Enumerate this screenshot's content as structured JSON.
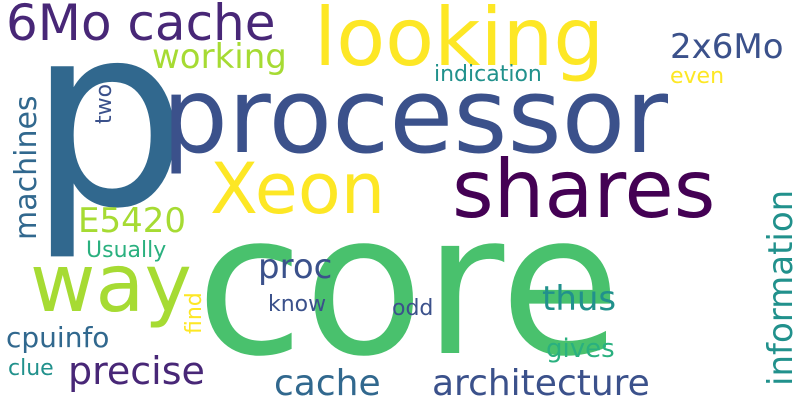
{
  "words": {
    "p": {
      "text": "p",
      "color": "#31688e"
    },
    "core": {
      "text": "core",
      "color": "#49c16d"
    },
    "processor": {
      "text": "processor",
      "color": "#3b518b"
    },
    "looking": {
      "text": "looking",
      "color": "#fde725"
    },
    "shares": {
      "text": "shares",
      "color": "#440154"
    },
    "xeon": {
      "text": "Xeon",
      "color": "#fde725"
    },
    "way": {
      "text": "way",
      "color": "#a6db33"
    },
    "cache_6mo": {
      "text": "6Mo cache",
      "color": "#482777"
    },
    "working": {
      "text": "working",
      "color": "#a6db33"
    },
    "x2_6mo": {
      "text": "2x6Mo",
      "color": "#3b518b"
    },
    "indication": {
      "text": "indication",
      "color": "#21918c"
    },
    "even": {
      "text": "even",
      "color": "#fde725"
    },
    "two": {
      "text": "two",
      "color": "#3b518b"
    },
    "machines": {
      "text": "machines",
      "color": "#31688e"
    },
    "e5420": {
      "text": "E5420",
      "color": "#a6db33"
    },
    "usually": {
      "text": "Usually",
      "color": "#2ab07f"
    },
    "proc": {
      "text": "proc",
      "color": "#3b518b"
    },
    "information": {
      "text": "information",
      "color": "#21918c"
    },
    "thus": {
      "text": "thus",
      "color": "#21918c"
    },
    "find": {
      "text": "find",
      "color": "#fde725"
    },
    "know": {
      "text": "know",
      "color": "#3b518b"
    },
    "odd": {
      "text": "odd",
      "color": "#3b518b"
    },
    "cpuinfo": {
      "text": "cpuinfo",
      "color": "#31688e"
    },
    "precise": {
      "text": "precise",
      "color": "#482777"
    },
    "gives": {
      "text": "gives",
      "color": "#2ab07f"
    },
    "clue": {
      "text": "clue",
      "color": "#21918c"
    },
    "cache": {
      "text": "cache",
      "color": "#31688e"
    },
    "architecture": {
      "text": "architecture",
      "color": "#3b518b"
    }
  }
}
